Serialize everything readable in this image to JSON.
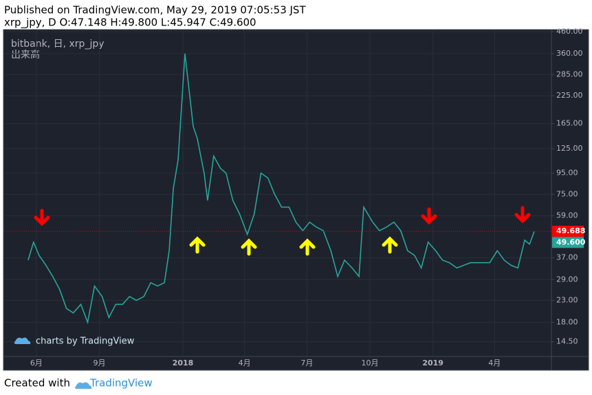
{
  "chart_data": {
    "type": "line",
    "title": "Published on TradingView.com, May 29, 2019 07:05:53 JST",
    "subtitle": "xrp_jpy, D O:47.148 H:49.800 L:45.947 C:49.600",
    "legend_title": "bitbank, 日, xrp_jpy",
    "legend_sub": "出来高",
    "watermark": "charts by TradingView",
    "footer": {
      "prefix": "Created with",
      "brand": "TradingView"
    },
    "log_scale": true,
    "color": "#26a69a",
    "x": [
      "2017-05-20",
      "2017-05-28",
      "2017-06-05",
      "2017-06-15",
      "2017-06-25",
      "2017-07-05",
      "2017-07-15",
      "2017-07-25",
      "2017-08-05",
      "2017-08-15",
      "2017-08-25",
      "2017-09-05",
      "2017-09-15",
      "2017-09-25",
      "2017-10-05",
      "2017-10-15",
      "2017-10-25",
      "2017-11-05",
      "2017-11-15",
      "2017-11-25",
      "2017-12-05",
      "2017-12-12",
      "2017-12-18",
      "2017-12-25",
      "2018-01-04",
      "2018-01-10",
      "2018-01-16",
      "2018-01-22",
      "2018-02-01",
      "2018-02-06",
      "2018-02-15",
      "2018-02-25",
      "2018-03-05",
      "2018-03-15",
      "2018-03-25",
      "2018-04-05",
      "2018-04-15",
      "2018-04-25",
      "2018-05-05",
      "2018-05-15",
      "2018-05-25",
      "2018-06-05",
      "2018-06-15",
      "2018-06-25",
      "2018-07-05",
      "2018-07-15",
      "2018-07-25",
      "2018-08-05",
      "2018-08-15",
      "2018-08-25",
      "2018-09-05",
      "2018-09-15",
      "2018-09-22",
      "2018-10-05",
      "2018-10-15",
      "2018-10-25",
      "2018-11-05",
      "2018-11-15",
      "2018-11-25",
      "2018-12-05",
      "2018-12-15",
      "2018-12-25",
      "2019-01-05",
      "2019-01-15",
      "2019-01-25",
      "2019-02-05",
      "2019-02-15",
      "2019-02-25",
      "2019-03-05",
      "2019-03-15",
      "2019-03-25",
      "2019-04-05",
      "2019-04-15",
      "2019-04-25",
      "2019-05-05",
      "2019-05-15",
      "2019-05-22",
      "2019-05-29"
    ],
    "values": [
      36,
      44,
      38,
      34,
      30,
      26,
      21,
      20,
      22,
      18,
      27,
      24,
      19,
      22,
      22,
      24,
      23,
      24,
      28,
      27,
      28,
      40,
      80,
      110,
      360,
      240,
      160,
      140,
      95,
      70,
      115,
      100,
      95,
      70,
      60,
      48,
      60,
      95,
      90,
      75,
      65,
      65,
      55,
      50,
      55,
      52,
      50,
      40,
      30,
      36,
      33,
      30,
      65,
      55,
      50,
      52,
      55,
      50,
      40,
      38,
      33,
      44,
      40,
      36,
      35,
      33,
      34,
      35,
      35,
      35,
      35,
      40,
      36,
      34,
      33,
      45,
      43,
      49.6
    ],
    "xlim": [
      "2017-04-14",
      "2019-06-23"
    ],
    "xticks": [
      {
        "value": "2017-06-01",
        "label": "6月"
      },
      {
        "value": "2017-09-01",
        "label": "9月"
      },
      {
        "value": "2018-01-01",
        "label": "2018"
      },
      {
        "value": "2018-04-01",
        "label": "4月"
      },
      {
        "value": "2018-07-01",
        "label": "7月"
      },
      {
        "value": "2018-10-01",
        "label": "10月"
      },
      {
        "value": "2019-01-01",
        "label": "2019"
      },
      {
        "value": "2019-04-01",
        "label": "4月"
      }
    ],
    "ylim": [
      12.4,
      467
    ],
    "yticks": [
      {
        "value": 14.5,
        "label": "14.50"
      },
      {
        "value": 18,
        "label": "18.00"
      },
      {
        "value": 23,
        "label": "23.00"
      },
      {
        "value": 29,
        "label": "29.00"
      },
      {
        "value": 37,
        "label": "37.00"
      },
      {
        "value": 59,
        "label": "59.00"
      },
      {
        "value": 75,
        "label": "75.00"
      },
      {
        "value": 95,
        "label": "95.00"
      },
      {
        "value": 125,
        "label": "125.00"
      },
      {
        "value": 165,
        "label": "165.00"
      },
      {
        "value": 225,
        "label": "225.00"
      },
      {
        "value": 285,
        "label": "285.00"
      },
      {
        "value": 360,
        "label": "360.00"
      },
      {
        "value": 460,
        "label": "460.00"
      }
    ],
    "markers": [
      {
        "value": 49.688,
        "color": "#ff0000"
      },
      {
        "value": {
          "value": 49.6,
          "label": "49.600"
        },
        "color": "#26a69a"
      }
    ]
  }
}
